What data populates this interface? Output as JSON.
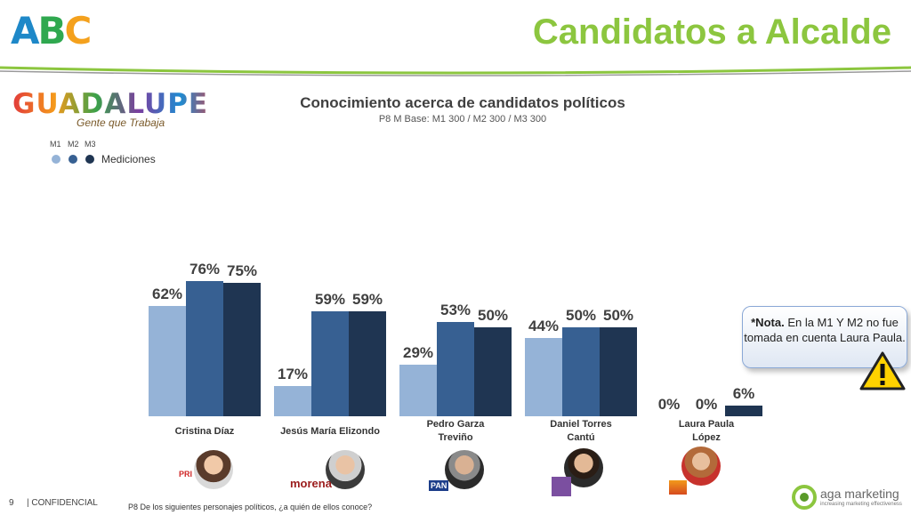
{
  "header": {
    "brand_letters": [
      "A",
      "B",
      "C"
    ],
    "title": "Candidatos a Alcalde",
    "city_logo": "GUADALUPE",
    "city_tagline": "Gente que Trabaja"
  },
  "chart_data": {
    "type": "bar",
    "title": "Conocimiento acerca de candidatos políticos",
    "subtitle": "P8 M Base: M1 300 / M2 300 / M3 300",
    "legend_title": "Mediciones",
    "categories": [
      "Cristina Díaz",
      "Jesús María Elizondo",
      "Pedro Garza Treviño",
      "Daniel Torres Cantú",
      "Laura Paula López"
    ],
    "category_lines": [
      [
        "Cristina Díaz"
      ],
      [
        "Jesús María Elizondo"
      ],
      [
        "Pedro Garza",
        "Treviño"
      ],
      [
        "Daniel Torres",
        "Cantú"
      ],
      [
        "Laura Paula",
        "López"
      ]
    ],
    "series": [
      {
        "name": "M1",
        "values": [
          62,
          17,
          29,
          44,
          0
        ],
        "color": "#95b3d7"
      },
      {
        "name": "M2",
        "values": [
          76,
          59,
          53,
          50,
          0
        ],
        "color": "#376092"
      },
      {
        "name": "M3",
        "values": [
          75,
          59,
          50,
          50,
          6
        ],
        "color": "#1f3552"
      }
    ],
    "value_labels": [
      [
        "62%",
        "76%",
        "75%"
      ],
      [
        "17%",
        "59%",
        "59%"
      ],
      [
        "29%",
        "53%",
        "50%"
      ],
      [
        "44%",
        "50%",
        "50%"
      ],
      [
        "0%",
        "0%",
        "6%"
      ]
    ],
    "ylim": [
      0,
      100
    ],
    "legend_position": "top-left",
    "grid": false
  },
  "note": {
    "bold": "*Nota.",
    "text": "En la M1 Y M2 no fue tomada en cuenta Laura Paula."
  },
  "party_logos": [
    "PRI",
    "morena",
    "PAN",
    "",
    ""
  ],
  "footer": {
    "page": "9",
    "confidential": "| CONFIDENCIAL",
    "question": "P8 De los siguientes personajes políticos, ¿a quién de ellos conoce?",
    "company": "aga marketing",
    "company_tagline": "increasing marketing effectiveness"
  },
  "colors": {
    "accent_green": "#8cc63f",
    "m1": "#95b3d7",
    "m2": "#376092",
    "m3": "#1f3552",
    "warning": "#ffd200"
  },
  "icons": [
    "warning-icon",
    "candidate-photo",
    "party-logo"
  ]
}
